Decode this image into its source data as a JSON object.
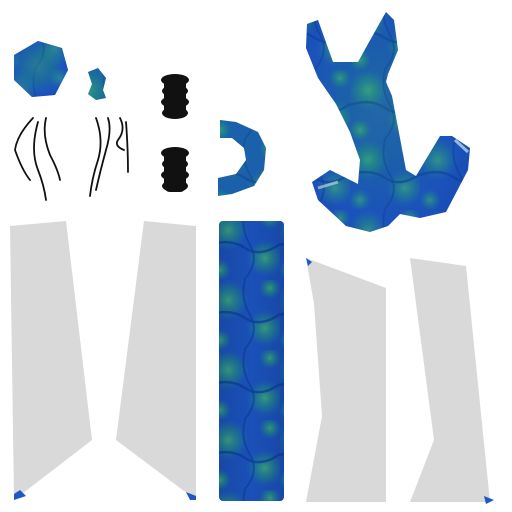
{
  "texture_atlas": {
    "colors": {
      "background": "#ffffff",
      "blue_dark": "#0a3fa0",
      "blue_mid": "#1f58c4",
      "teal": "#1f8f7e",
      "green_light": "#3fae74",
      "grey_panel": "#d9d9d9",
      "black": "#111111"
    },
    "pieces": [
      {
        "name": "hexagon-patch",
        "fill": "blue-green"
      },
      {
        "name": "small-chip",
        "fill": "blue-green"
      },
      {
        "name": "wire-strands",
        "fill": "black-outline"
      },
      {
        "name": "coil-spring-top",
        "fill": "black"
      },
      {
        "name": "coil-spring-bottom",
        "fill": "black"
      },
      {
        "name": "c-bracket",
        "fill": "blue-green"
      },
      {
        "name": "y-shaped-frame",
        "fill": "blue-green"
      },
      {
        "name": "grey-panel-1",
        "fill": "grey"
      },
      {
        "name": "grey-panel-2",
        "fill": "grey"
      },
      {
        "name": "blue-strip",
        "fill": "blue-green"
      },
      {
        "name": "grey-panel-3",
        "fill": "grey"
      },
      {
        "name": "grey-panel-4",
        "fill": "grey"
      }
    ]
  }
}
